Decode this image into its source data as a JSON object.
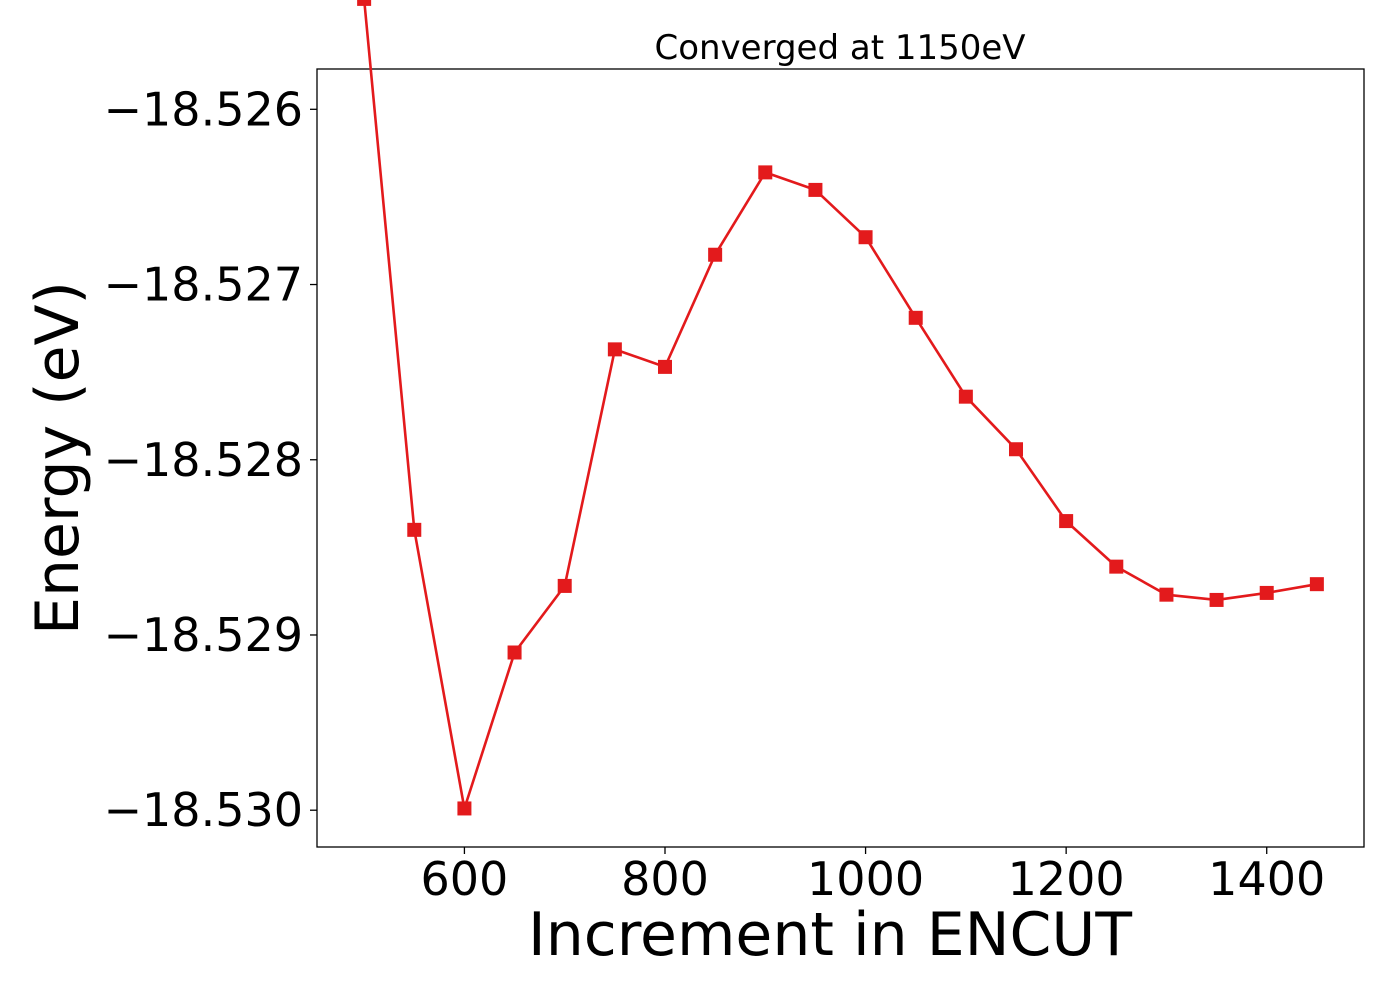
{
  "chart_data": {
    "type": "line",
    "title": "Converged at 1150eV",
    "xlabel": "Increment in ENCUT",
    "ylabel": "Energy (eV)",
    "xlim": [
      453,
      1497
    ],
    "ylim": [
      -18.53021,
      -18.52577
    ],
    "xticks": [
      600,
      800,
      1000,
      1200,
      1400
    ],
    "xtick_labels": [
      "600",
      "800",
      "1000",
      "1200",
      "1400"
    ],
    "yticks": [
      -18.526,
      -18.527,
      -18.528,
      -18.529,
      -18.53
    ],
    "ytick_labels": [
      "−18.526",
      "−18.527",
      "−18.528",
      "−18.529",
      "−18.530"
    ],
    "grid": false,
    "series": [
      {
        "color": "#e31a1c",
        "marker": "square",
        "x": [
          500,
          550,
          600,
          650,
          700,
          750,
          800,
          850,
          900,
          950,
          1000,
          1050,
          1100,
          1150,
          1200,
          1250,
          1300,
          1350,
          1400,
          1450
        ],
        "y": [
          -18.52537,
          -18.5284,
          -18.52999,
          -18.5291,
          -18.52872,
          -18.52737,
          -18.52747,
          -18.52683,
          -18.52636,
          -18.52646,
          -18.52673,
          -18.52719,
          -18.52764,
          -18.52794,
          -18.52835,
          -18.52861,
          -18.52877,
          -18.5288,
          -18.52876,
          -18.52871
        ]
      }
    ]
  }
}
